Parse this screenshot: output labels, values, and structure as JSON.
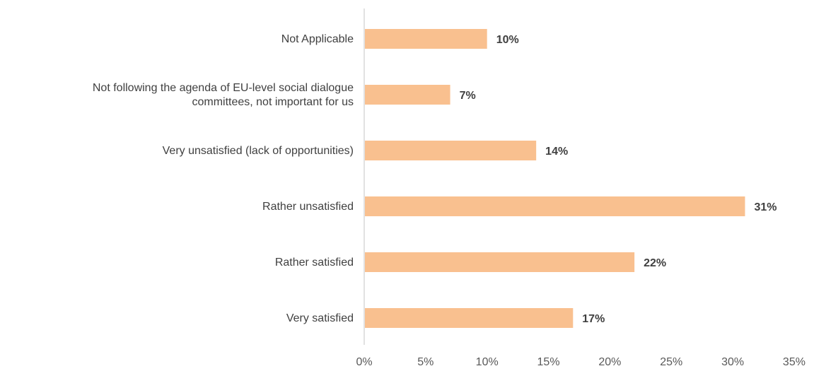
{
  "chart_data": {
    "type": "bar",
    "orientation": "horizontal",
    "categories": [
      [
        "Not Applicable"
      ],
      [
        "Not following the agenda of EU-level social dialogue",
        "committees, not important for us"
      ],
      [
        "Very unsatisfied (lack of opportunities)"
      ],
      [
        "Rather unsatisfied"
      ],
      [
        "Rather satisfied"
      ],
      [
        "Very satisfied"
      ]
    ],
    "values": [
      10,
      7,
      14,
      31,
      22,
      17
    ],
    "data_labels": [
      "10%",
      "7%",
      "14%",
      "31%",
      "22%",
      "17%"
    ],
    "xlim": [
      0,
      35
    ],
    "x_ticks": [
      0,
      5,
      10,
      15,
      20,
      25,
      30,
      35
    ],
    "x_tick_labels": [
      "0%",
      "5%",
      "10%",
      "15%",
      "20%",
      "25%",
      "30%",
      "35%"
    ],
    "title": "",
    "xlabel": "",
    "ylabel": "",
    "legend": "none",
    "grid": false,
    "bar_color": "#F9C08F",
    "axis_color": "#D9D9D9",
    "text_color": "#404040"
  }
}
